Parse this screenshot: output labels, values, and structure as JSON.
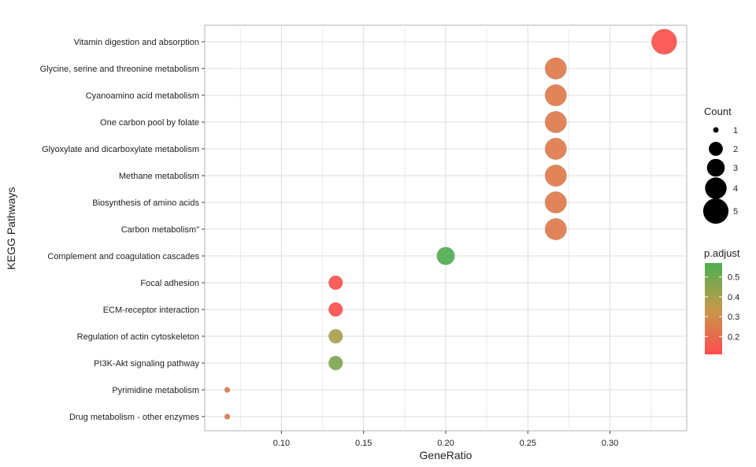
{
  "chart_data": {
    "type": "scatter",
    "xlabel": "GeneRatio",
    "ylabel": "KEGG Pathways",
    "xlim": [
      0.0533,
      0.3467
    ],
    "x_ticks": [
      0.1,
      0.15,
      0.2,
      0.25,
      0.3
    ],
    "x_tick_labels": [
      "0.10",
      "0.15",
      "0.20",
      "0.25",
      "0.30"
    ],
    "grid": true,
    "categories": [
      "Vitamin digestion and absorption",
      "Glycine, serine and threonine metabolism",
      "Cyanoamino acid metabolism",
      "One carbon pool by folate",
      "Glyoxylate and dicarboxylate metabolism",
      "Methane metabolism",
      "Biosynthesis of amino acids",
      "Carbon metabolism\"",
      "Complement and coagulation cascades",
      "Focal adhesion",
      "ECM-receptor interaction",
      "Regulation of actin cytoskeleton",
      "PI3K-Akt signaling pathway",
      "Pyrimidine metabolism",
      "Drug metabolism - other enzymes"
    ],
    "gene_ratio": [
      0.333,
      0.267,
      0.267,
      0.267,
      0.267,
      0.267,
      0.267,
      0.267,
      0.2,
      0.133,
      0.133,
      0.133,
      0.133,
      0.067,
      0.067
    ],
    "count": [
      5,
      4,
      4,
      4,
      4,
      4,
      4,
      4,
      3,
      2,
      2,
      2,
      2,
      1,
      1
    ],
    "p_adjust": [
      0.12,
      0.24,
      0.24,
      0.24,
      0.24,
      0.24,
      0.24,
      0.24,
      0.56,
      0.12,
      0.12,
      0.39,
      0.47,
      0.24,
      0.24
    ],
    "size_legend": {
      "title": "Count",
      "values": [
        1,
        2,
        3,
        4,
        5
      ],
      "labels": [
        "1",
        "2",
        "3",
        "4",
        "5"
      ]
    },
    "color_legend": {
      "title": "p.adjust",
      "min": 0.11,
      "max": 0.57,
      "ticks": [
        0.2,
        0.3,
        0.4,
        0.5
      ],
      "tick_labels": [
        "0.2",
        "0.3",
        "0.4",
        "0.5"
      ],
      "low_color": "#ff4d4d",
      "mid_color": "#c49a4a",
      "high_color": "#4caf50"
    },
    "legend_position": "right"
  }
}
